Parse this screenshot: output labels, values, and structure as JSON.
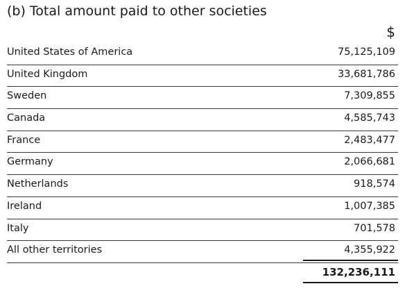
{
  "title": "(b) Total amount paid to other societies",
  "currency_symbol": "$",
  "rows": [
    {
      "territory": "United States of America",
      "amount": "75,125,109"
    },
    {
      "territory": "United Kingdom",
      "amount": "33,681,786"
    },
    {
      "territory": "Sweden",
      "amount": "7,309,855"
    },
    {
      "territory": "Canada",
      "amount": "4,585,743"
    },
    {
      "territory": "France",
      "amount": "2,483,477"
    },
    {
      "territory": "Germany",
      "amount": "2,066,681"
    },
    {
      "territory": "Netherlands",
      "amount": "918,574"
    },
    {
      "territory": "Ireland",
      "amount": "1,007,385"
    },
    {
      "territory": "Italy",
      "amount": "701,578"
    },
    {
      "territory": "All other territories",
      "amount": "4,355,922"
    }
  ],
  "total": "132,236,111"
}
